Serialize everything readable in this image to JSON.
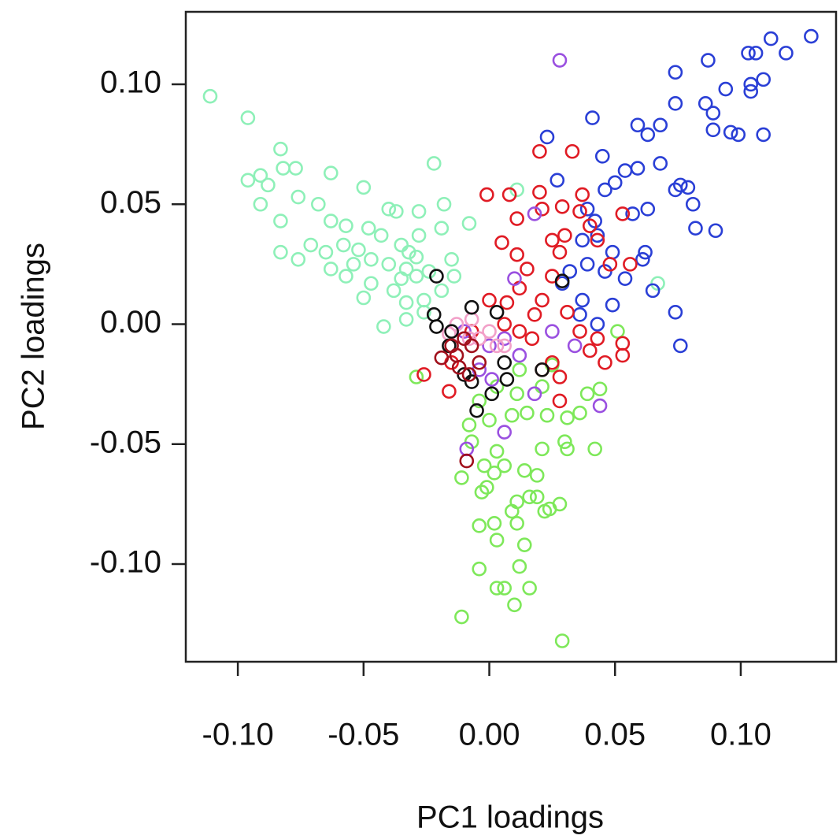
{
  "chart_data": {
    "type": "scatter",
    "xlabel": "PC1 loadings",
    "ylabel": "PC2 loadings",
    "xlim": [
      -0.1207,
      0.1379
    ],
    "ylim": [
      -0.1407,
      0.1302
    ],
    "xticks": [
      {
        "value": -0.1,
        "label": "-0.10"
      },
      -0.05,
      {
        "value": 0,
        "label": "0.00"
      },
      0.05,
      {
        "value": 0.1,
        "label": "0.10"
      }
    ],
    "yticks": [
      {
        "value": -0.1,
        "label": "-0.10"
      },
      -0.05,
      {
        "value": 0,
        "label": "0.00"
      },
      0.05,
      {
        "value": 0.1,
        "label": "0.10"
      }
    ],
    "grid": false,
    "series": [
      {
        "color": "#8ef0b8",
        "x": [
          -0.111,
          -0.096,
          -0.083,
          -0.082,
          -0.077,
          -0.063,
          -0.05,
          -0.096,
          -0.091,
          -0.088,
          -0.091,
          -0.083,
          -0.076,
          -0.068,
          -0.063,
          -0.057,
          -0.048,
          -0.083,
          -0.076,
          -0.071,
          -0.065,
          -0.063,
          -0.057,
          -0.022,
          -0.04,
          -0.037,
          -0.028,
          -0.018,
          -0.043,
          -0.035,
          -0.028,
          -0.019,
          -0.008,
          -0.047,
          -0.04,
          -0.033,
          -0.029,
          -0.024,
          -0.047,
          -0.038,
          -0.033,
          -0.026,
          -0.042,
          -0.033,
          -0.019,
          -0.015,
          -0.014,
          -0.032,
          -0.029,
          -0.035,
          -0.052,
          -0.054,
          -0.05,
          -0.058,
          -0.026,
          0.067,
          0.011
        ],
        "values": [
          0.095,
          0.086,
          0.073,
          0.065,
          0.065,
          0.063,
          0.057,
          0.06,
          0.062,
          0.058,
          0.05,
          0.043,
          0.053,
          0.05,
          0.043,
          0.041,
          0.04,
          0.03,
          0.027,
          0.033,
          0.03,
          0.023,
          0.02,
          0.067,
          0.048,
          0.047,
          0.047,
          0.05,
          0.037,
          0.033,
          0.037,
          0.04,
          0.042,
          0.027,
          0.025,
          0.023,
          0.02,
          0.022,
          0.017,
          0.014,
          0.009,
          0.01,
          -0.001,
          0.002,
          0.014,
          0.027,
          0.02,
          0.03,
          0.028,
          0.019,
          0.031,
          0.025,
          0.011,
          0.033,
          0.005,
          0.017,
          0.056
        ]
      },
      {
        "color": "#7ee85a",
        "x": [
          0.029,
          -0.011,
          0.01,
          0.003,
          0.006,
          0.016,
          -0.004,
          0.012,
          0.014,
          0.003,
          -0.004,
          0.002,
          0.011,
          0.022,
          0.024,
          0.028,
          0.009,
          0.016,
          0.019,
          0.011,
          -0.011,
          -0.003,
          -0.001,
          0.002,
          0.019,
          0.014,
          0.006,
          0.021,
          0.031,
          0.042,
          0.03,
          0.003,
          -0.002,
          -0.007,
          -0.008,
          0,
          0.009,
          0.015,
          0.023,
          0.031,
          0.036,
          -0.029,
          0.011,
          0.021,
          0.025,
          0.012,
          0.003,
          -0.004,
          0.039,
          0.044,
          0.051
        ],
        "values": [
          -0.132,
          -0.122,
          -0.117,
          -0.11,
          -0.11,
          -0.11,
          -0.102,
          -0.101,
          -0.092,
          -0.09,
          -0.084,
          -0.083,
          -0.083,
          -0.078,
          -0.077,
          -0.075,
          -0.078,
          -0.072,
          -0.072,
          -0.074,
          -0.064,
          -0.07,
          -0.068,
          -0.062,
          -0.063,
          -0.061,
          -0.059,
          -0.052,
          -0.052,
          -0.052,
          -0.049,
          -0.053,
          -0.059,
          -0.049,
          -0.042,
          -0.04,
          -0.038,
          -0.037,
          -0.038,
          -0.039,
          -0.037,
          -0.022,
          -0.029,
          -0.026,
          -0.017,
          -0.019,
          -0.026,
          -0.032,
          -0.029,
          -0.027,
          -0.003
        ]
      },
      {
        "color": "#2a3fd6",
        "x": [
          0.128,
          0.112,
          0.118,
          0.103,
          0.106,
          0.087,
          0.074,
          0.109,
          0.104,
          0.104,
          0.094,
          0.074,
          0.086,
          0.089,
          0.096,
          0.099,
          0.089,
          0.109,
          0.041,
          0.059,
          0.063,
          0.068,
          0.023,
          0.045,
          0.068,
          0.059,
          0.054,
          0.05,
          0.027,
          0.046,
          0.074,
          0.076,
          0.079,
          0.081,
          0.082,
          0.09,
          0.063,
          0.057,
          0.039,
          0.042,
          0.043,
          0.049,
          0.062,
          0.061,
          0.054,
          0.065,
          0.074,
          0.076,
          0.049,
          0.037,
          0.032,
          0.029,
          0.037,
          0.039,
          0.046,
          0.036,
          0.043
        ],
        "values": [
          0.12,
          0.119,
          0.113,
          0.113,
          0.113,
          0.11,
          0.105,
          0.102,
          0.1,
          0.097,
          0.098,
          0.092,
          0.092,
          0.088,
          0.08,
          0.079,
          0.081,
          0.079,
          0.086,
          0.083,
          0.079,
          0.083,
          0.078,
          0.07,
          0.067,
          0.065,
          0.064,
          0.059,
          0.06,
          0.056,
          0.056,
          0.058,
          0.057,
          0.05,
          0.04,
          0.039,
          0.048,
          0.046,
          0.048,
          0.043,
          0.037,
          0.03,
          0.03,
          0.027,
          0.019,
          0.014,
          0.005,
          -0.009,
          0.008,
          0.01,
          0.022,
          0.017,
          0.035,
          0.025,
          0.022,
          0.004,
          0
        ]
      },
      {
        "color": "#e01b24",
        "x": [
          0.02,
          0.033,
          -0.001,
          0.008,
          0.02,
          0.037,
          0.011,
          0.029,
          0.036,
          0.04,
          0.03,
          0.005,
          0.011,
          0.028,
          0.015,
          0.025,
          0.012,
          0.021,
          0.007,
          0.018,
          0.031,
          0.043,
          0.048,
          0.053,
          0.056,
          0.036,
          0.04,
          0.046,
          0.053,
          0.053,
          0.043,
          0.025,
          0.028,
          0.028,
          0.021,
          0.012,
          0.006,
          0,
          -0.007,
          -0.015,
          -0.016,
          -0.026,
          0.025,
          0.021,
          0.017
        ],
        "values": [
          0.072,
          0.072,
          0.054,
          0.054,
          0.055,
          0.054,
          0.044,
          0.049,
          0.047,
          0.041,
          0.037,
          0.034,
          0.029,
          0.03,
          0.023,
          0.02,
          0.015,
          0.01,
          0.009,
          0.004,
          0.005,
          0.035,
          0.025,
          0.046,
          0.025,
          -0.003,
          -0.011,
          -0.016,
          -0.013,
          -0.008,
          -0.006,
          -0.016,
          -0.022,
          -0.032,
          -0.019,
          -0.003,
          0,
          0.01,
          -0.003,
          -0.016,
          -0.028,
          -0.021,
          0.035,
          0.048,
          -0.006
        ]
      },
      {
        "color": "#9a50e0",
        "x": [
          0.028,
          -0.009,
          0.006,
          0.018,
          0.01,
          0,
          0.006,
          0.012,
          -0.004,
          0.001,
          0.044,
          0.034,
          0.025,
          -0.01,
          0.018
        ],
        "values": [
          0.11,
          -0.052,
          -0.045,
          0.046,
          0.019,
          -0.009,
          -0.006,
          -0.013,
          -0.019,
          -0.023,
          -0.034,
          -0.009,
          -0.003,
          -0.003,
          -0.029
        ]
      },
      {
        "color": "#f2a0c8",
        "x": [
          -0.013,
          -0.007,
          -0.004,
          0.003,
          -0.008,
          0,
          0.006,
          -0.016
        ],
        "values": [
          0,
          0.002,
          -0.006,
          -0.009,
          -0.006,
          -0.003,
          -0.009,
          -0.004
        ]
      },
      {
        "color": "#111111",
        "x": [
          -0.022,
          -0.021,
          -0.007,
          0.003,
          -0.015,
          -0.016,
          -0.007,
          -0.005,
          0.001,
          -0.01,
          0.006,
          0.029,
          0.021,
          0.007,
          -0.021
        ],
        "values": [
          0.004,
          -0.001,
          0.007,
          0.005,
          -0.003,
          -0.009,
          -0.024,
          -0.036,
          -0.029,
          -0.021,
          -0.016,
          0.018,
          -0.019,
          -0.023,
          0.02
        ]
      },
      {
        "color": "#a0101c",
        "x": [
          -0.013,
          -0.015,
          -0.019,
          -0.008,
          -0.009,
          -0.007,
          -0.01,
          -0.012,
          -0.004
        ],
        "values": [
          -0.013,
          -0.009,
          -0.014,
          -0.021,
          -0.057,
          -0.009,
          -0.006,
          -0.018,
          -0.016
        ]
      }
    ]
  }
}
